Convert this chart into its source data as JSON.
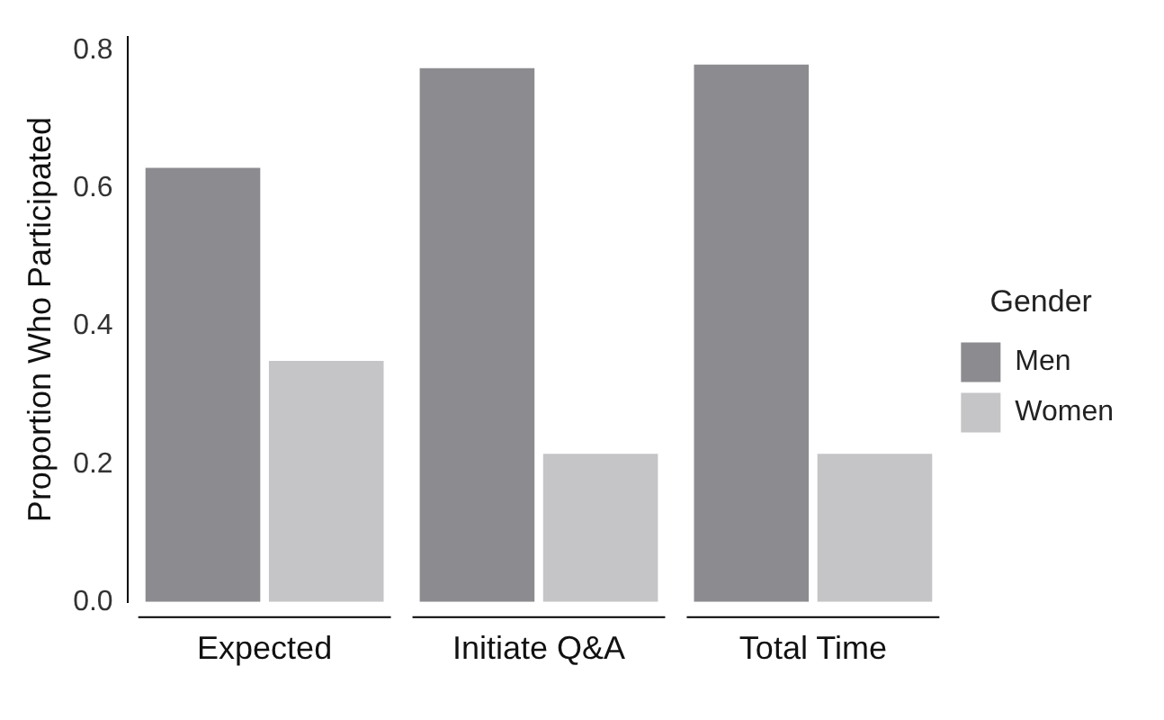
{
  "chart_data": {
    "type": "bar",
    "ylabel": "Proportion Who Participated",
    "legend_title": "Gender",
    "legend": "right",
    "categories": [
      "Expected",
      "Initiate Q&A",
      "Total Time"
    ],
    "series": [
      {
        "name": "Men",
        "color": "#8c8c90",
        "values": [
          0.63,
          0.775,
          0.78
        ]
      },
      {
        "name": "Women",
        "color": "#c5c5c7",
        "values": [
          0.35,
          0.215,
          0.215
        ]
      }
    ],
    "ylim": [
      0,
      0.82
    ],
    "yticks": [
      {
        "value": 0,
        "label": "0.0"
      },
      {
        "value": 0.2,
        "label": "0.2"
      },
      {
        "value": 0.4,
        "label": "0.4"
      },
      {
        "value": 0.6,
        "label": "0.6"
      },
      {
        "value": 0.8,
        "label": "0.8"
      }
    ],
    "grid": false
  }
}
